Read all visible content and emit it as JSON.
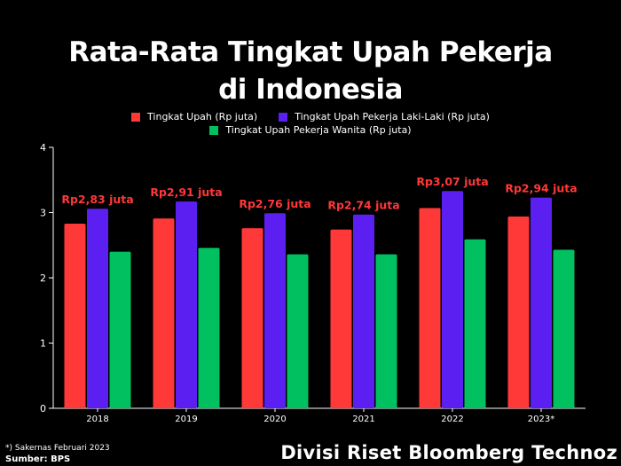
{
  "colors": {
    "background": "#000000",
    "series": [
      "#ff3838",
      "#5b1ff2",
      "#00c060"
    ],
    "annotation": "#ff3838",
    "axis": "#ffffff",
    "grid_tick": "#ffffff"
  },
  "footer": {
    "note": "*) Sakernas Februari 2023",
    "source": "Sumber: BPS",
    "credit": "Divisi Riset Bloomberg Technoz"
  },
  "chart_data": {
    "type": "bar",
    "title_line1": "Rata-Rata Tingkat Upah Pekerja",
    "title_line2": "di Indonesia",
    "categories": [
      "2018",
      "2019",
      "2020",
      "2021",
      "2022",
      "2023*"
    ],
    "series": [
      {
        "name": "Tingkat Upah (Rp juta)",
        "values": [
          2.83,
          2.91,
          2.76,
          2.74,
          3.07,
          2.94
        ]
      },
      {
        "name": "Tingkat Upah Pekerja Laki-Laki (Rp juta)",
        "values": [
          3.06,
          3.17,
          2.99,
          2.97,
          3.33,
          3.23
        ]
      },
      {
        "name": "Tingkat Upah Pekerja Wanita (Rp juta)",
        "values": [
          2.4,
          2.46,
          2.36,
          2.36,
          2.59,
          2.43
        ]
      }
    ],
    "annotations": [
      "Rp2,83 juta",
      "Rp2,91 juta",
      "Rp2,76 juta",
      "Rp2,74 juta",
      "Rp3,07 juta",
      "Rp2,94 juta"
    ],
    "yticks": [
      "0",
      "1",
      "2",
      "3",
      "4"
    ],
    "ylim": [
      0,
      4
    ],
    "legend_position": "top-center",
    "grid": false
  }
}
